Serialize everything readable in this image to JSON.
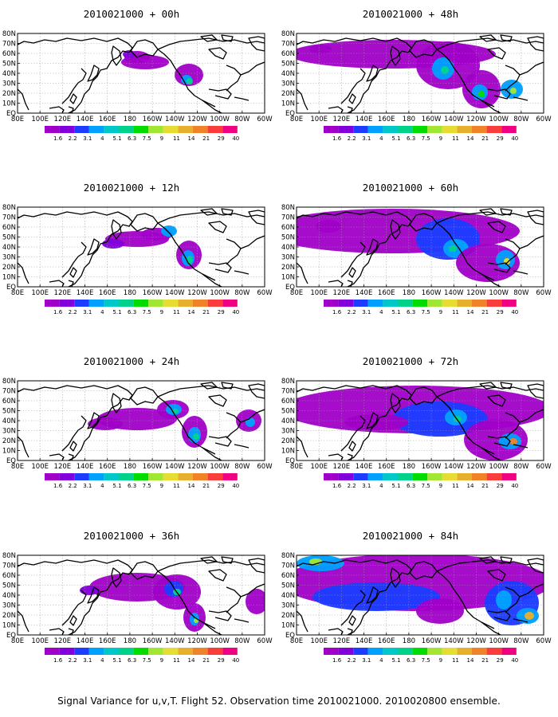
{
  "caption": "Signal Variance for u,v,T. Flight 52. Observation time 2010021000. 2010020800 ensemble.",
  "x_tick_labels": [
    "80E",
    "100E",
    "120E",
    "140E",
    "160E",
    "180",
    "160W",
    "140W",
    "120W",
    "100W",
    "80W",
    "60W"
  ],
  "y_tick_labels": [
    "80N",
    "70N",
    "60N",
    "50N",
    "40N",
    "30N",
    "20N",
    "10N",
    "EQ"
  ],
  "colorbar_levels": [
    "1.6",
    "2.2",
    "3.1",
    "4",
    "5.1",
    "6.3",
    "7.5",
    "9",
    "11",
    "14",
    "21",
    "29",
    "40"
  ],
  "colorbar_colors": [
    "#a000c8",
    "#8200dc",
    "#1e3cff",
    "#00a0ff",
    "#00c8c8",
    "#00d28c",
    "#00dc00",
    "#a0e632",
    "#e6dc32",
    "#e6af2d",
    "#f08228",
    "#fa3c3c",
    "#f00082"
  ],
  "panels": [
    {
      "title": "2010021000 + 00h",
      "lead_hours": 0
    },
    {
      "title": "2010021000 + 12h",
      "lead_hours": 12
    },
    {
      "title": "2010021000 + 24h",
      "lead_hours": 24
    },
    {
      "title": "2010021000 + 36h",
      "lead_hours": 36
    },
    {
      "title": "2010021000 + 48h",
      "lead_hours": 48
    },
    {
      "title": "2010021000 + 60h",
      "lead_hours": 60
    },
    {
      "title": "2010021000 + 72h",
      "lead_hours": 72
    },
    {
      "title": "2010021000 + 84h",
      "lead_hours": 84
    }
  ]
}
